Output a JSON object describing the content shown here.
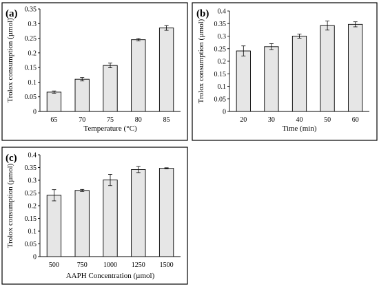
{
  "chart_data": [
    {
      "panel": "(a)",
      "type": "bar",
      "categories": [
        "65",
        "70",
        "75",
        "80",
        "85"
      ],
      "values": [
        0.066,
        0.11,
        0.157,
        0.245,
        0.285
      ],
      "errors": [
        0.004,
        0.006,
        0.008,
        0.004,
        0.008
      ],
      "xlabel": "Temperature (°C)",
      "ylabel": "Trolox consumption (µmol)",
      "ylim": [
        0,
        0.35
      ],
      "yticks": [
        "0",
        "0.05",
        "0.1",
        "0.15",
        "0.2",
        "0.25",
        "0.3",
        "0.35"
      ],
      "grid": false,
      "bar_color": "#e6e6e6"
    },
    {
      "panel": "(b)",
      "type": "bar",
      "categories": [
        "20",
        "30",
        "40",
        "50",
        "60"
      ],
      "values": [
        0.241,
        0.258,
        0.3,
        0.342,
        0.347
      ],
      "errors": [
        0.02,
        0.012,
        0.008,
        0.018,
        0.01
      ],
      "xlabel": "Time (min)",
      "ylabel": "Trolox consumption (µmol)",
      "ylim": [
        0,
        0.4
      ],
      "yticks": [
        "0",
        "0.05",
        "0.1",
        "0.15",
        "0.2",
        "0.25",
        "0.3",
        "0.35",
        "0.4"
      ],
      "grid": false,
      "bar_color": "#e6e6e6"
    },
    {
      "panel": "(c)",
      "type": "bar",
      "categories": [
        "500",
        "750",
        "1000",
        "1250",
        "1500"
      ],
      "values": [
        0.241,
        0.26,
        0.301,
        0.342,
        0.347
      ],
      "errors": [
        0.022,
        0.004,
        0.022,
        0.012,
        0.002
      ],
      "xlabel": "AAPH Concentration (µmol)",
      "ylabel": "Trolox consumption (µmol)",
      "ylim": [
        0,
        0.4
      ],
      "yticks": [
        "0",
        "0.05",
        "0.1",
        "0.15",
        "0.2",
        "0.25",
        "0.3",
        "0.35",
        "0.4"
      ],
      "grid": false,
      "bar_color": "#e6e6e6"
    }
  ]
}
